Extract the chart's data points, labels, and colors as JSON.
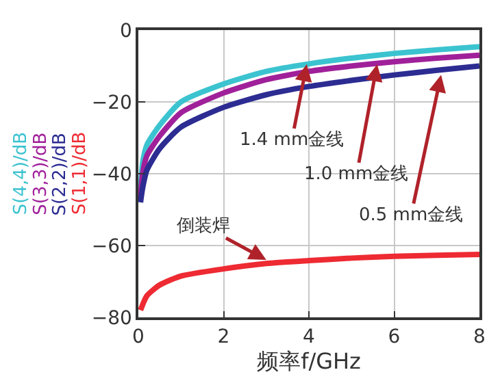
{
  "chart_data": {
    "type": "line",
    "xlabel": "频率f/GHz",
    "series": [
      {
        "name": "S(4,4)/dB",
        "color": "#3cc3d0",
        "x": [
          0.05,
          0.1,
          0.2,
          0.5,
          1,
          2,
          3,
          4,
          5,
          6,
          7,
          8
        ],
        "values": [
          -45,
          -37,
          -32,
          -26.5,
          -20,
          -15,
          -11.5,
          -9.4,
          -7.8,
          -6.5,
          -5.5,
          -4.6
        ]
      },
      {
        "name": "S(3,3)/dB",
        "color": "#a0209a",
        "x": [
          0.05,
          0.1,
          0.2,
          0.5,
          1,
          2,
          3,
          4,
          5,
          6,
          7,
          8
        ],
        "values": [
          -47,
          -40,
          -35,
          -29.5,
          -23,
          -17.5,
          -13.8,
          -11.5,
          -10,
          -8.8,
          -7.8,
          -7
        ]
      },
      {
        "name": "S(2,2)/dB",
        "color": "#2c2c92",
        "x": [
          0.05,
          0.1,
          0.2,
          0.5,
          1,
          2,
          3,
          4,
          5,
          6,
          7,
          8
        ],
        "values": [
          -48,
          -44,
          -39,
          -33,
          -27,
          -21.5,
          -18,
          -15.7,
          -14,
          -12.5,
          -11.2,
          -10
        ]
      },
      {
        "name": "S(1,1)/dB",
        "color": "#ee2a32",
        "x": [
          0.05,
          0.2,
          0.5,
          1,
          2,
          3,
          4,
          5,
          6,
          7,
          8
        ],
        "values": [
          -78,
          -74,
          -71,
          -68.5,
          -66.5,
          -65,
          -64.2,
          -63.5,
          -63,
          -62.7,
          -62.5
        ]
      }
    ],
    "xlim": [
      0,
      8
    ],
    "xticks": [
      0,
      2,
      4,
      6,
      8
    ],
    "ylim": [
      -80,
      0
    ],
    "yticks": [
      -80,
      -60,
      -40,
      -20,
      0
    ],
    "grid": true,
    "legend": false,
    "annotations": [
      {
        "text": "1.4 mm金线",
        "x": 3.95,
        "y": -9.5
      },
      {
        "text": "1.0 mm金线",
        "x": 5.6,
        "y": -9.5
      },
      {
        "text": "0.5 mm金线",
        "x": 7.1,
        "y": -12.5
      },
      {
        "text": "倒装焊",
        "x": 3,
        "y": -64
      }
    ]
  }
}
